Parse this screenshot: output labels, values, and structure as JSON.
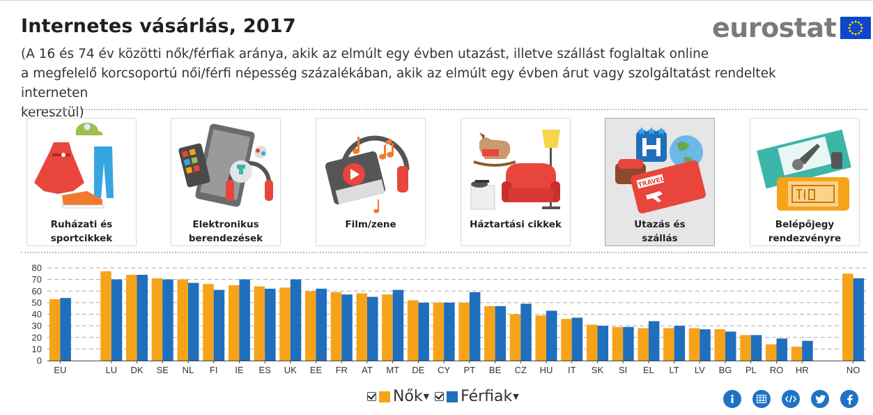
{
  "header": {
    "title": "Internetes vásárlás, 2017",
    "subtitle_line1": "(A 16 és 74 év közötti nők/férfiak aránya, akik az elmúlt egy évben utazást, illetve szállást foglaltak online",
    "subtitle_line2": "a megfelelő korcsoportú női/férfi népesség százalékában, akik az elmúlt egy évben árut vagy szolgáltatást rendeltek interneten",
    "subtitle_line3": "keresztül)",
    "logo_text": "eurostat"
  },
  "categories": [
    {
      "line1": "Ruházati és",
      "line2": "sportcikkek",
      "icon": "clothing-icon",
      "selected": false
    },
    {
      "line1": "Elektronikus",
      "line2": "berendezések",
      "icon": "electronics-icon",
      "selected": false
    },
    {
      "line1": "Film/zene",
      "line2": "",
      "icon": "film-music-icon",
      "selected": false
    },
    {
      "line1": "Háztartási cikkek",
      "line2": "",
      "icon": "household-icon",
      "selected": false
    },
    {
      "line1": "Utazás és",
      "line2": "szállás",
      "icon": "travel-icon",
      "selected": true
    },
    {
      "line1": "Belépőjegy",
      "line2": "rendezvényre",
      "icon": "ticket-icon",
      "selected": false
    }
  ],
  "chart_data": {
    "type": "bar",
    "categories": [
      "EU",
      "LU",
      "DK",
      "SE",
      "NL",
      "FI",
      "IE",
      "ES",
      "UK",
      "EE",
      "FR",
      "AT",
      "MT",
      "DE",
      "CY",
      "PT",
      "BE",
      "CZ",
      "HU",
      "IT",
      "SK",
      "SI",
      "EL",
      "LT",
      "LV",
      "BG",
      "PL",
      "RO",
      "HR",
      "NO"
    ],
    "series": [
      {
        "name": "Nők",
        "color": "#f6a31a",
        "values": [
          53,
          77,
          74,
          71,
          70,
          66,
          65,
          64,
          63,
          60,
          59,
          58,
          57,
          52,
          50,
          50,
          47,
          40,
          39,
          36,
          31,
          29,
          28,
          28,
          28,
          27,
          22,
          14,
          12,
          75
        ]
      },
      {
        "name": "Férfiak",
        "color": "#1f6fbd",
        "values": [
          54,
          70,
          74,
          70,
          67,
          61,
          70,
          62,
          70,
          62,
          57,
          55,
          61,
          50,
          50,
          59,
          47,
          49,
          43,
          37,
          30,
          29,
          34,
          30,
          27,
          25,
          22,
          19,
          17,
          71
        ]
      }
    ],
    "ylim": [
      0,
      80
    ],
    "yticks": [
      0,
      10,
      20,
      30,
      40,
      50,
      60,
      70,
      80
    ],
    "grid": true
  },
  "legend": {
    "women_label": "Nők",
    "men_label": "Férfiak",
    "women_color": "#f6a31a",
    "men_color": "#1f6fbd"
  },
  "share_icons": [
    "info-icon",
    "table-icon",
    "embed-icon",
    "twitter-icon",
    "facebook-icon"
  ]
}
